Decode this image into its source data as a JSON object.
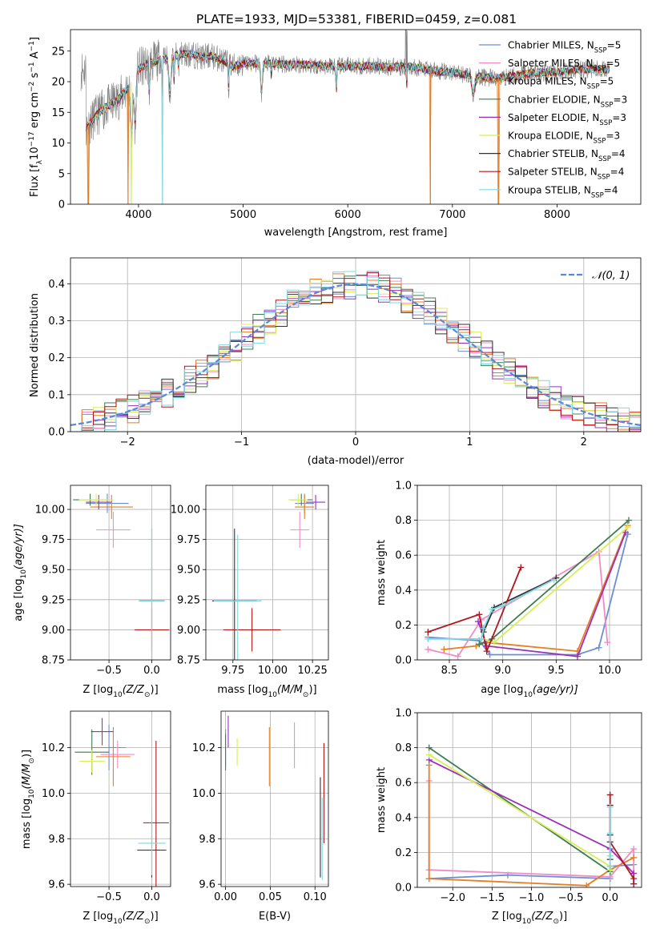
{
  "chart_data": [
    {
      "type": "line",
      "title": "PLATE=1933, MJD=53381, FIBERID=0459, z=0.081",
      "xlabel": "wavelength [Angstrom, rest frame]",
      "ylabel_parts": [
        "Flux [f",
        "λ",
        "10",
        "−17",
        " erg cm",
        "−2",
        " s",
        "−1",
        " A",
        "−1",
        "]"
      ],
      "xlim": [
        3350,
        8800
      ],
      "ylim": [
        0,
        28.5
      ],
      "xticks": [
        4000,
        5000,
        6000,
        7000,
        8000
      ],
      "yticks": [
        0,
        5,
        10,
        15,
        20,
        25
      ],
      "grid": false,
      "legend_position": "upper-right",
      "legend": [
        {
          "label": "Chabrier MILES, N",
          "sub": "SSP",
          "tail": "=5",
          "color": "#6b8ed6"
        },
        {
          "label": "Salpeter MILES, N",
          "sub": "SSP",
          "tail": "=5",
          "color": "#f08cc5"
        },
        {
          "label": "Kroupa MILES, N",
          "sub": "SSP",
          "tail": "=5",
          "color": "#e67e22"
        },
        {
          "label": "Chabrier ELODIE, N",
          "sub": "SSP",
          "tail": "=3",
          "color": "#3e7d50"
        },
        {
          "label": "Salpeter ELODIE, N",
          "sub": "SSP",
          "tail": "=3",
          "color": "#9b30b8"
        },
        {
          "label": "Kroupa ELODIE, N",
          "sub": "SSP",
          "tail": "=3",
          "color": "#d8ee5a"
        },
        {
          "label": "Chabrier STELIB, N",
          "sub": "SSP",
          "tail": "=4",
          "color": "#333333"
        },
        {
          "label": "Salpeter STELIB, N",
          "sub": "SSP",
          "tail": "=4",
          "color": "#b0161c"
        },
        {
          "label": "Kroupa STELIB, N",
          "sub": "SSP",
          "tail": "=4",
          "color": "#7fd8e0"
        }
      ],
      "continuum": {
        "x": [
          3500,
          3600,
          3700,
          3800,
          3900,
          4000,
          4100,
          4200,
          4300,
          4400,
          4500,
          4600,
          4700,
          4800,
          4900,
          5000,
          5200,
          5400,
          5600,
          5800,
          6000,
          6200,
          6400,
          6600,
          6800,
          7000,
          7200,
          7400,
          7600,
          7800,
          8000,
          8200,
          8400,
          8500
        ],
        "y": [
          12.5,
          14.5,
          16.0,
          17.0,
          19.0,
          22.0,
          23.0,
          23.5,
          24.0,
          24.5,
          24.5,
          24.0,
          24.2,
          23.5,
          22.5,
          23.0,
          23.0,
          22.8,
          22.8,
          22.5,
          22.5,
          22.6,
          22.4,
          22.5,
          21.8,
          21.5,
          21.0,
          20.5,
          21.0,
          21.5,
          21.5,
          22.0,
          22.0,
          22.0
        ]
      },
      "model_dropouts": [
        {
          "x": 3520,
          "color": "#e67e22"
        },
        {
          "x": 3900,
          "color": "#e67e22"
        },
        {
          "x": 3930,
          "color": "#d8ee5a"
        },
        {
          "x": 4230,
          "color": "#7fd8e0"
        },
        {
          "x": 6790,
          "color": "#e67e22"
        },
        {
          "x": 7440,
          "color": "#e67e22"
        }
      ]
    },
    {
      "type": "area",
      "xlabel": "(data-model)/error",
      "ylabel": "Normed distribution",
      "xlim": [
        -2.5,
        2.5
      ],
      "ylim": [
        0,
        0.47
      ],
      "xticks": [
        -2,
        -1,
        0,
        1,
        2
      ],
      "yticks": [
        0.0,
        0.1,
        0.2,
        0.3,
        0.4
      ],
      "grid": true,
      "legend_position": "upper-right",
      "gaussian_label": "𝒩(0, 1)",
      "gaussian_color": "#5a87d8",
      "bin_width": 0.1,
      "bins_start": -2.5,
      "series_colors": [
        "#6b8ed6",
        "#f08cc5",
        "#e67e22",
        "#3e7d50",
        "#9b30b8",
        "#d8ee5a",
        "#333333",
        "#b0161c",
        "#7fd8e0"
      ]
    },
    {
      "type": "scatter",
      "xlabel_parts": [
        "Z [log",
        "10",
        "(Z/Z",
        "⊙",
        ")]"
      ],
      "ylabel_parts": [
        "age  [log",
        "10",
        "(age/yr)]"
      ],
      "xlim": [
        -0.95,
        0.22
      ],
      "ylim": [
        8.75,
        10.2
      ],
      "xticks": [
        -0.5,
        0.0
      ],
      "yticks": [
        8.75,
        9.0,
        9.25,
        9.5,
        9.75,
        10.0
      ],
      "grid": true,
      "points": [
        {
          "x": -0.52,
          "y": 10.05,
          "xerr": 0.25,
          "yerr": 0.08,
          "color": "#6b8ed6"
        },
        {
          "x": -0.47,
          "y": 10.02,
          "xerr": 0.25,
          "yerr": 0.1,
          "color": "#e67e22"
        },
        {
          "x": -0.45,
          "y": 9.83,
          "xerr": 0.2,
          "yerr": 0.15,
          "color": "#f08cc5"
        },
        {
          "x": -0.72,
          "y": 10.08,
          "xerr": 0.2,
          "yerr": 0.05,
          "color": "#3e7d50"
        },
        {
          "x": -0.62,
          "y": 10.06,
          "xerr": 0.15,
          "yerr": 0.06,
          "color": "#9b30b8"
        },
        {
          "x": -0.65,
          "y": 10.08,
          "xerr": 0.2,
          "yerr": 0.05,
          "color": "#d8ee5a"
        },
        {
          "x": 0.0,
          "y": 9.24,
          "xerr": 0.15,
          "yerr": 0.6,
          "color": "#333333"
        },
        {
          "x": 0.0,
          "y": 9.0,
          "xerr": 0.2,
          "yerr": 0.18,
          "color": "#b0161c"
        },
        {
          "x": 0.0,
          "y": 9.24,
          "xerr": 0.15,
          "yerr": 0.6,
          "color": "#7fd8e0"
        }
      ]
    },
    {
      "type": "scatter",
      "xlabel_parts": [
        "mass [log",
        "10",
        "(M/M",
        "⊙",
        ")]"
      ],
      "ylabel": "",
      "xlim": [
        9.58,
        10.35
      ],
      "ylim": [
        8.75,
        10.2
      ],
      "xticks": [
        9.75,
        10.0,
        10.25
      ],
      "yticks": [
        8.75,
        9.0,
        9.25,
        9.5,
        9.75,
        10.0
      ],
      "grid": true,
      "points": [
        {
          "x": 10.2,
          "y": 10.05,
          "xerr": 0.06,
          "yerr": 0.08,
          "color": "#6b8ed6"
        },
        {
          "x": 10.17,
          "y": 9.83,
          "xerr": 0.06,
          "yerr": 0.15,
          "color": "#f08cc5"
        },
        {
          "x": 10.2,
          "y": 10.02,
          "xerr": 0.06,
          "yerr": 0.1,
          "color": "#e67e22"
        },
        {
          "x": 10.18,
          "y": 10.08,
          "xerr": 0.07,
          "yerr": 0.05,
          "color": "#3e7d50"
        },
        {
          "x": 10.27,
          "y": 10.06,
          "xerr": 0.06,
          "yerr": 0.06,
          "color": "#9b30b8"
        },
        {
          "x": 10.16,
          "y": 10.08,
          "xerr": 0.06,
          "yerr": 0.05,
          "color": "#d8ee5a"
        },
        {
          "x": 9.76,
          "y": 9.24,
          "xerr": 0.14,
          "yerr": 0.6,
          "color": "#333333"
        },
        {
          "x": 9.87,
          "y": 9.0,
          "xerr": 0.18,
          "yerr": 0.18,
          "color": "#b0161c"
        },
        {
          "x": 9.78,
          "y": 9.24,
          "xerr": 0.15,
          "yerr": 0.55,
          "color": "#7fd8e0"
        }
      ]
    },
    {
      "type": "line",
      "xlabel_parts": [
        "age  [log",
        "10",
        "(age/yr)]"
      ],
      "ylabel": "mass weight",
      "xlim": [
        8.2,
        10.3
      ],
      "ylim": [
        0,
        1.0
      ],
      "xticks": [
        8.5,
        9.0,
        9.5,
        10.0
      ],
      "yticks": [
        0.0,
        0.2,
        0.4,
        0.6,
        0.8,
        1.0
      ],
      "grid": true,
      "series": [
        {
          "color": "#6b8ed6",
          "x": [
            8.3,
            8.78,
            8.88,
            9.7,
            9.9,
            10.17
          ],
          "y": [
            0.13,
            0.11,
            0.03,
            0.03,
            0.07,
            0.72
          ]
        },
        {
          "color": "#f08cc5",
          "x": [
            8.3,
            8.58,
            8.8,
            9.9,
            9.98
          ],
          "y": [
            0.06,
            0.02,
            0.23,
            0.62,
            0.1
          ]
        },
        {
          "color": "#e67e22",
          "x": [
            8.45,
            8.75,
            8.85,
            9.7,
            10.17
          ],
          "y": [
            0.06,
            0.08,
            0.1,
            0.05,
            0.77
          ]
        },
        {
          "color": "#3e7d50",
          "x": [
            8.78,
            8.9,
            10.18
          ],
          "y": [
            0.09,
            0.12,
            0.8
          ]
        },
        {
          "color": "#9b30b8",
          "x": [
            8.77,
            8.85,
            9.7,
            10.15
          ],
          "y": [
            0.22,
            0.08,
            0.02,
            0.73
          ]
        },
        {
          "color": "#d8ee5a",
          "x": [
            8.8,
            8.92,
            10.17
          ],
          "y": [
            0.12,
            0.1,
            0.76
          ]
        },
        {
          "color": "#333333",
          "x": [
            8.82,
            8.92,
            9.5
          ],
          "y": [
            0.16,
            0.3,
            0.47
          ]
        },
        {
          "color": "#b0161c",
          "x": [
            8.3,
            8.78,
            8.85,
            9.17
          ],
          "y": [
            0.16,
            0.26,
            0.05,
            0.53
          ]
        },
        {
          "color": "#7fd8e0",
          "x": [
            8.3,
            8.8,
            8.82,
            8.9,
            9.0,
            9.48
          ],
          "y": [
            0.12,
            0.12,
            0.18,
            0.29,
            0.31,
            0.46
          ]
        }
      ]
    },
    {
      "type": "scatter",
      "xlabel_parts": [
        "Z [log",
        "10",
        "(Z/Z",
        "⊙",
        ")]"
      ],
      "ylabel_parts": [
        "mass [log",
        "10",
        "(M/M",
        "⊙",
        ")]"
      ],
      "xlim": [
        -0.95,
        0.22
      ],
      "ylim": [
        9.59,
        10.36
      ],
      "xticks": [
        -0.5,
        0.0
      ],
      "yticks": [
        9.6,
        9.8,
        10.0,
        10.2
      ],
      "grid": true,
      "points": [
        {
          "x": -0.5,
          "y": 10.2,
          "xerr": 0.2,
          "yerr": 0.1,
          "color": "#6b8ed6"
        },
        {
          "x": -0.4,
          "y": 10.17,
          "xerr": 0.2,
          "yerr": 0.06,
          "color": "#f08cc5"
        },
        {
          "x": -0.45,
          "y": 10.16,
          "xerr": 0.2,
          "yerr": 0.13,
          "color": "#e67e22"
        },
        {
          "x": -0.7,
          "y": 10.18,
          "xerr": 0.2,
          "yerr": 0.1,
          "color": "#3e7d50"
        },
        {
          "x": -0.58,
          "y": 10.27,
          "xerr": 0.13,
          "yerr": 0.06,
          "color": "#9b30b8"
        },
        {
          "x": -0.7,
          "y": 10.14,
          "xerr": 0.15,
          "yerr": 0.05,
          "color": "#d8ee5a"
        },
        {
          "x": 0.0,
          "y": 9.75,
          "xerr": 0.17,
          "yerr": 0.12,
          "color": "#333333"
        },
        {
          "x": 0.05,
          "y": 9.87,
          "xerr": 0.15,
          "yerr": 0.36,
          "color": "#b0161c"
        },
        {
          "x": 0.0,
          "y": 9.78,
          "xerr": 0.16,
          "yerr": 0.14,
          "color": "#7fd8e0"
        }
      ]
    },
    {
      "type": "scatter",
      "xlabel": "E(B-V)",
      "ylabel": "",
      "xlim": [
        -0.005,
        0.115
      ],
      "ylim": [
        9.59,
        10.36
      ],
      "xticks": [
        0.0,
        0.05,
        0.1
      ],
      "yticks": [
        9.6,
        9.8,
        10.0,
        10.2
      ],
      "grid": true,
      "points": [
        {
          "x": 0.0,
          "y": 10.2,
          "yerr": 0.08,
          "color": "#6b8ed6"
        },
        {
          "x": 0.077,
          "y": 10.21,
          "yerr": 0.1,
          "color": "#f08cc5"
        },
        {
          "x": 0.049,
          "y": 10.16,
          "yerr": 0.13,
          "color": "#e67e22"
        },
        {
          "x": 0.0,
          "y": 10.18,
          "yerr": 0.08,
          "color": "#3e7d50"
        },
        {
          "x": 0.003,
          "y": 10.27,
          "yerr": 0.07,
          "color": "#9b30b8"
        },
        {
          "x": 0.013,
          "y": 10.18,
          "yerr": 0.06,
          "color": "#d8ee5a"
        },
        {
          "x": 0.106,
          "y": 9.85,
          "yerr": 0.22,
          "color": "#333333"
        },
        {
          "x": 0.11,
          "y": 10.0,
          "yerr": 0.22,
          "color": "#b0161c"
        },
        {
          "x": 0.108,
          "y": 9.8,
          "yerr": 0.18,
          "color": "#7fd8e0"
        }
      ]
    },
    {
      "type": "line",
      "xlabel_parts": [
        "Z [log",
        "10",
        "(Z/Z",
        "⊙",
        ")]"
      ],
      "ylabel": "mass weight",
      "xlim": [
        -2.45,
        0.4
      ],
      "ylim": [
        0,
        1.0
      ],
      "xticks": [
        -2.0,
        -1.5,
        -1.0,
        -0.5,
        0.0
      ],
      "yticks": [
        0.0,
        0.2,
        0.4,
        0.6,
        0.8,
        1.0
      ],
      "grid": true,
      "series": [
        {
          "color": "#6b8ed6",
          "x": [
            -2.3,
            -1.3,
            0.0,
            0.0,
            0.3
          ],
          "y": [
            0.05,
            0.07,
            0.05,
            0.12,
            0.13
          ]
        },
        {
          "color": "#f08cc5",
          "x": [
            -2.3,
            -2.3,
            0.0,
            0.3,
            0.3
          ],
          "y": [
            0.61,
            0.1,
            0.06,
            0.22,
            0.02
          ]
        },
        {
          "color": "#e67e22",
          "x": [
            -2.3,
            -2.3,
            -0.3,
            0.0,
            0.3
          ],
          "y": [
            0.7,
            0.05,
            0.01,
            0.1,
            0.17
          ]
        },
        {
          "color": "#3e7d50",
          "x": [
            -2.3,
            0.0,
            0.0
          ],
          "y": [
            0.8,
            0.09,
            0.12
          ]
        },
        {
          "color": "#9b30b8",
          "x": [
            -2.3,
            0.0,
            0.3,
            0.3
          ],
          "y": [
            0.73,
            0.22,
            0.08,
            0.02
          ]
        },
        {
          "color": "#d8ee5a",
          "x": [
            -2.3,
            0.0,
            0.0
          ],
          "y": [
            0.76,
            0.12,
            0.1
          ]
        },
        {
          "color": "#333333",
          "x": [
            0.0,
            0.0,
            0.0
          ],
          "y": [
            0.47,
            0.3,
            0.16
          ]
        },
        {
          "color": "#b0161c",
          "x": [
            0.0,
            0.0,
            0.3,
            0.3
          ],
          "y": [
            0.53,
            0.26,
            0.05,
            0.02
          ]
        },
        {
          "color": "#7fd8e0",
          "x": [
            0.0,
            0.0,
            0.0,
            0.0
          ],
          "y": [
            0.46,
            0.31,
            0.18,
            0.12
          ]
        }
      ]
    }
  ]
}
